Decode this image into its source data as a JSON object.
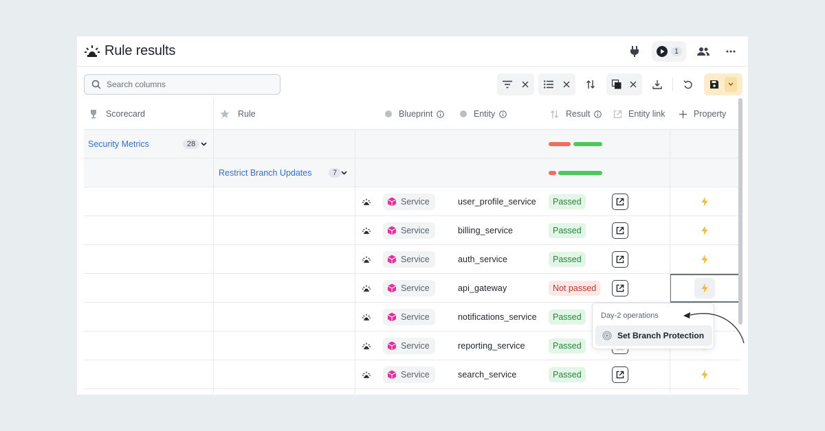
{
  "header": {
    "title": "Rule results",
    "run_count": "1"
  },
  "toolbar": {
    "search_placeholder": "Search columns",
    "search_value": ""
  },
  "columns": [
    {
      "key": "scorecard",
      "label": "Scorecard",
      "icon": "trophy-icon"
    },
    {
      "key": "rule",
      "label": "Rule",
      "icon": "star-icon"
    },
    {
      "key": "blueprint",
      "label": "Blueprint",
      "icon": "circle-icon"
    },
    {
      "key": "entity",
      "label": "Entity",
      "icon": "circle-icon"
    },
    {
      "key": "result",
      "label": "Result",
      "icon": "sort-icon"
    },
    {
      "key": "entity_link",
      "label": "Entity link",
      "icon": "external-link-icon"
    },
    {
      "key": "property",
      "label": "Property",
      "icon": "plus-icon"
    }
  ],
  "groups": {
    "scorecard": {
      "label": "Security Metrics",
      "count": "28"
    },
    "rule": {
      "label": "Restrict Branch Updates",
      "count": "7"
    }
  },
  "rows": [
    {
      "blueprint": "Service",
      "entity": "user_profile_service",
      "result": "Passed",
      "status": "passed"
    },
    {
      "blueprint": "Service",
      "entity": "billing_service",
      "result": "Passed",
      "status": "passed"
    },
    {
      "blueprint": "Service",
      "entity": "auth_service",
      "result": "Passed",
      "status": "passed"
    },
    {
      "blueprint": "Service",
      "entity": "api_gateway",
      "result": "Not passed",
      "status": "failed"
    },
    {
      "blueprint": "Service",
      "entity": "notifications_service",
      "result": "Passed",
      "status": "passed"
    },
    {
      "blueprint": "Service",
      "entity": "reporting_service",
      "result": "Passed",
      "status": "passed"
    },
    {
      "blueprint": "Service",
      "entity": "search_service",
      "result": "Passed",
      "status": "passed"
    }
  ],
  "popover": {
    "title": "Day-2 operations",
    "action": "Set Branch Protection"
  },
  "colors": {
    "passed": "#4cc85a",
    "failed": "#f26b5b",
    "link": "#2f6fdf",
    "service_icon": "#ea2e9b",
    "bolt": "#f5b82e"
  }
}
